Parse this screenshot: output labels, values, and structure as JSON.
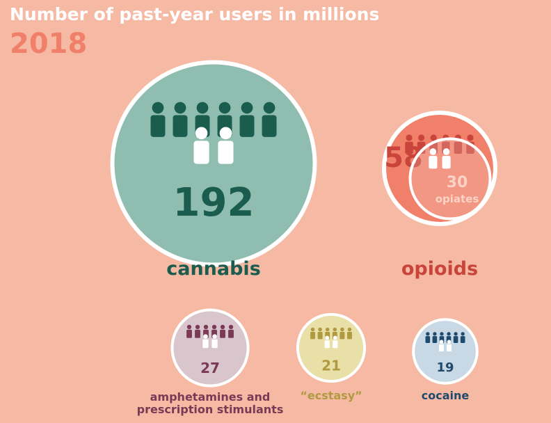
{
  "chart_data": {
    "type": "bubble",
    "title": "Number of past-year users in millions",
    "subtitle": "2018",
    "categories": [
      "cannabis",
      "opioids",
      "amphetamines and prescription stimulants",
      "“ecstasy”",
      "cocaine"
    ],
    "values": [
      192,
      58,
      27,
      21,
      19
    ],
    "colors": [
      "#8fbdb0",
      "#f0806a",
      "#d9c6cc",
      "#e9e0a8",
      "#c8d8e4"
    ],
    "text_colors": [
      "#1a5c4e",
      "#c9443a",
      "#7a3a55",
      "#b09a40",
      "#1e4a6e"
    ],
    "annotations": [
      {
        "value": 30,
        "label": "opiates"
      }
    ]
  }
}
